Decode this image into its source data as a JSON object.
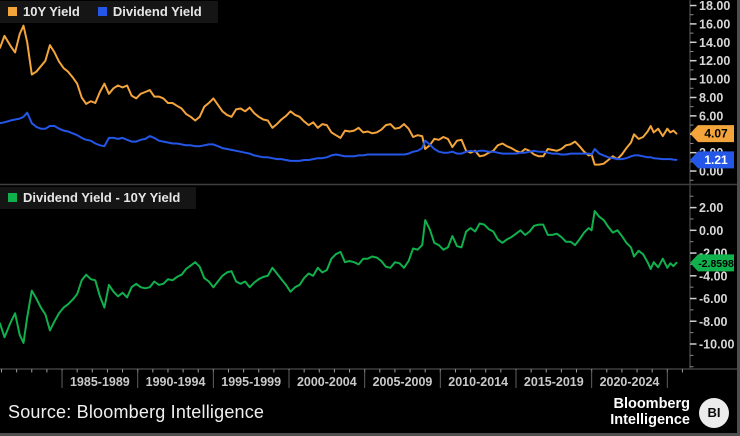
{
  "chart_data": {
    "type": "line",
    "title": "",
    "grid": false,
    "legend_position": "top-left of each panel",
    "axis_text_color": "#D6D6D6",
    "x": {
      "xlim": [
        1980.9,
        2026.5
      ],
      "tick_bin_labels": [
        "1985-1989",
        "1990-1994",
        "1995-1999",
        "2000-2004",
        "2005-2009",
        "2010-2014",
        "2015-2019",
        "2020-2024"
      ],
      "bin_boundary_years": [
        1985,
        1990,
        1995,
        2000,
        2005,
        2010,
        2015,
        2020,
        2025
      ],
      "years": [
        1980.9,
        1981.2,
        1981.6,
        1981.9,
        1982.2,
        1982.45,
        1982.7,
        1983.0,
        1983.3,
        1983.6,
        1983.9,
        1984.2,
        1984.5,
        1984.8,
        1985.1,
        1985.4,
        1985.7,
        1986.0,
        1986.3,
        1986.6,
        1986.9,
        1987.2,
        1987.5,
        1987.8,
        1988.1,
        1988.4,
        1988.7,
        1989.0,
        1989.3,
        1989.6,
        1989.9,
        1990.2,
        1990.5,
        1990.8,
        1991.1,
        1991.4,
        1991.7,
        1992.0,
        1992.3,
        1992.6,
        1992.9,
        1993.2,
        1993.5,
        1993.8,
        1994.1,
        1994.4,
        1994.7,
        1995.0,
        1995.3,
        1995.6,
        1995.9,
        1996.2,
        1996.5,
        1996.8,
        1997.1,
        1997.4,
        1997.7,
        1998.0,
        1998.3,
        1998.6,
        1998.9,
        1999.2,
        1999.5,
        1999.8,
        2000.1,
        2000.4,
        2000.7,
        2001.0,
        2001.3,
        2001.6,
        2001.9,
        2002.2,
        2002.5,
        2002.8,
        2003.1,
        2003.4,
        2003.7,
        2004.0,
        2004.3,
        2004.6,
        2004.9,
        2005.2,
        2005.5,
        2005.8,
        2006.1,
        2006.4,
        2006.7,
        2007.0,
        2007.3,
        2007.6,
        2007.9,
        2008.2,
        2008.5,
        2008.8,
        2009.0,
        2009.3,
        2009.6,
        2009.9,
        2010.2,
        2010.5,
        2010.8,
        2011.1,
        2011.4,
        2011.7,
        2012.0,
        2012.3,
        2012.6,
        2012.9,
        2013.2,
        2013.5,
        2013.8,
        2014.1,
        2014.4,
        2014.7,
        2015.0,
        2015.3,
        2015.6,
        2015.9,
        2016.2,
        2016.5,
        2016.8,
        2017.1,
        2017.4,
        2017.7,
        2018.0,
        2018.3,
        2018.6,
        2018.9,
        2019.2,
        2019.5,
        2019.8,
        2020.0,
        2020.2,
        2020.5,
        2020.8,
        2021.1,
        2021.4,
        2021.7,
        2022.0,
        2022.3,
        2022.6,
        2022.8,
        2023.1,
        2023.4,
        2023.7,
        2023.9,
        2024.1,
        2024.4,
        2024.7,
        2025.0,
        2025.2,
        2025.4,
        2025.6
      ]
    },
    "series_values": {
      "y10": [
        13.4,
        14.7,
        13.6,
        12.9,
        14.9,
        15.8,
        14.0,
        10.5,
        10.8,
        11.4,
        12.0,
        13.7,
        12.9,
        11.9,
        11.2,
        10.8,
        10.2,
        9.5,
        8.0,
        7.3,
        7.6,
        7.4,
        8.6,
        9.5,
        8.4,
        9.0,
        9.3,
        9.1,
        9.3,
        8.2,
        7.9,
        8.4,
        8.6,
        8.8,
        8.1,
        8.1,
        7.9,
        7.4,
        7.4,
        7.1,
        6.8,
        6.2,
        5.9,
        5.5,
        5.9,
        7.0,
        7.4,
        7.9,
        7.2,
        6.5,
        6.1,
        5.9,
        6.7,
        6.8,
        6.5,
        6.9,
        6.3,
        5.9,
        5.6,
        5.5,
        4.7,
        5.1,
        5.6,
        6.0,
        6.5,
        6.1,
        5.9,
        5.4,
        5.0,
        5.3,
        4.7,
        5.1,
        5.0,
        4.2,
        3.9,
        3.6,
        4.4,
        4.3,
        4.4,
        4.7,
        4.2,
        4.3,
        4.1,
        4.2,
        4.5,
        5.0,
        5.1,
        4.6,
        4.7,
        5.1,
        4.6,
        3.7,
        3.9,
        3.8,
        2.4,
        2.8,
        3.5,
        3.4,
        3.7,
        3.5,
        2.6,
        3.3,
        3.4,
        2.2,
        2.0,
        2.2,
        1.6,
        1.7,
        2.0,
        2.2,
        2.8,
        3.0,
        2.7,
        2.5,
        2.2,
        2.0,
        2.4,
        2.2,
        1.8,
        1.6,
        1.6,
        2.4,
        2.3,
        2.2,
        2.4,
        2.8,
        2.9,
        3.2,
        2.7,
        2.1,
        1.7,
        1.8,
        0.7,
        0.7,
        0.8,
        1.2,
        1.6,
        1.3,
        1.8,
        2.5,
        3.1,
        4.0,
        3.5,
        3.7,
        4.3,
        4.9,
        4.2,
        4.6,
        3.8,
        4.6,
        4.2,
        4.4,
        4.07
      ],
      "div": [
        5.2,
        5.3,
        5.5,
        5.6,
        5.7,
        5.9,
        6.35,
        5.2,
        4.8,
        4.6,
        4.6,
        4.9,
        4.9,
        4.6,
        4.4,
        4.3,
        4.1,
        3.9,
        3.6,
        3.4,
        3.3,
        3.0,
        2.8,
        2.7,
        3.6,
        3.6,
        3.5,
        3.6,
        3.4,
        3.2,
        3.2,
        3.4,
        3.5,
        3.8,
        3.6,
        3.3,
        3.2,
        3.1,
        3.0,
        3.0,
        2.9,
        2.8,
        2.8,
        2.7,
        2.7,
        2.8,
        2.9,
        2.9,
        2.7,
        2.5,
        2.4,
        2.3,
        2.2,
        2.1,
        2.0,
        1.9,
        1.7,
        1.6,
        1.5,
        1.5,
        1.4,
        1.3,
        1.3,
        1.2,
        1.1,
        1.1,
        1.1,
        1.2,
        1.2,
        1.3,
        1.4,
        1.4,
        1.5,
        1.7,
        1.8,
        1.7,
        1.6,
        1.6,
        1.6,
        1.7,
        1.7,
        1.8,
        1.8,
        1.8,
        1.8,
        1.8,
        1.8,
        1.8,
        1.8,
        1.8,
        1.9,
        2.1,
        2.2,
        2.5,
        3.3,
        2.9,
        2.4,
        2.1,
        2.0,
        2.0,
        2.1,
        1.9,
        1.9,
        2.1,
        2.2,
        2.1,
        2.2,
        2.2,
        2.1,
        2.1,
        2.0,
        1.9,
        1.9,
        1.9,
        1.9,
        2.0,
        2.0,
        2.1,
        2.2,
        2.1,
        2.1,
        2.0,
        1.9,
        1.9,
        1.8,
        1.8,
        1.9,
        1.9,
        1.9,
        1.9,
        1.9,
        1.8,
        2.4,
        1.9,
        1.7,
        1.5,
        1.4,
        1.3,
        1.3,
        1.4,
        1.6,
        1.7,
        1.7,
        1.6,
        1.5,
        1.5,
        1.4,
        1.35,
        1.3,
        1.3,
        1.3,
        1.25,
        1.21
      ]
    },
    "panels": [
      {
        "name": "yields",
        "ylim": [
          -1.3,
          18.6
        ],
        "yticks_major": [
          0,
          2,
          4,
          6,
          8,
          10,
          12,
          14,
          16,
          18
        ],
        "ytick_minor_step": 1,
        "series": [
          {
            "name": "10Y Yield",
            "color": "#F3A43B",
            "values_key": "y10",
            "last_value_label": "4.07",
            "label_text_color": "#000000"
          },
          {
            "name": "Dividend Yield",
            "color": "#2456E8",
            "values_key": "div",
            "last_value_label": "1.21",
            "label_text_color": "#FFFFFF"
          }
        ]
      },
      {
        "name": "spread",
        "ylim": [
          -12.2,
          3.9
        ],
        "yticks_major": [
          2,
          0,
          -2,
          -4,
          -6,
          -8,
          -10
        ],
        "ytick_minor_step": 1,
        "series": [
          {
            "name": "Dividend Yield - 10Y Yield",
            "color": "#10B04C",
            "values_key": "diff",
            "derived": "div minus y10",
            "last_value_label": "-2.8598",
            "label_text_color": "#000000"
          }
        ]
      }
    ]
  },
  "footer": {
    "source_text": "Source: Bloomberg Intelligence",
    "brand_line1": "Bloomberg",
    "brand_line2": "Intelligence",
    "logo_text": "BI"
  }
}
